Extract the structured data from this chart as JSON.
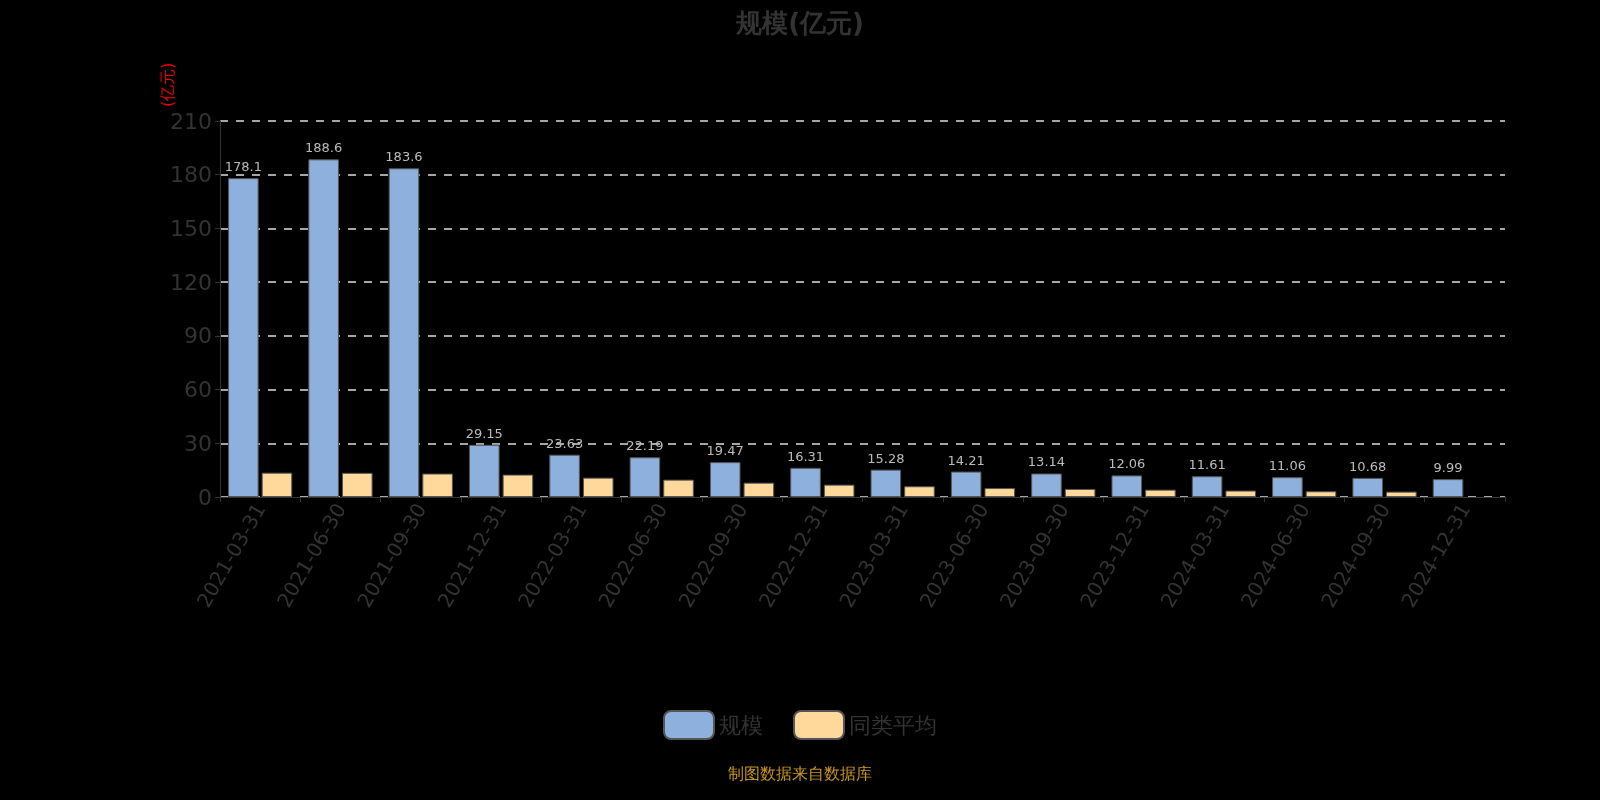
{
  "chart_data": {
    "type": "bar",
    "title": "规模(亿元)",
    "ylabel": "(亿元)",
    "categories": [
      "2021-03-31",
      "2021-06-30",
      "2021-09-30",
      "2021-12-31",
      "2022-03-31",
      "2022-06-30",
      "2022-09-30",
      "2022-12-31",
      "2023-03-31",
      "2023-06-30",
      "2023-09-30",
      "2023-12-31",
      "2024-03-31",
      "2024-06-30",
      "2024-09-30",
      "2024-12-31"
    ],
    "series": [
      {
        "name": "规模",
        "color": "#8eb0dc",
        "values": [
          178.1,
          188.6,
          183.6,
          29.15,
          23.63,
          22.19,
          19.47,
          16.31,
          15.28,
          14.21,
          13.14,
          12.06,
          11.61,
          11.06,
          10.68,
          9.99
        ],
        "data_labels": true
      },
      {
        "name": "同类平均",
        "color": "#ffd99b",
        "values": [
          13.6,
          13.5,
          13.1,
          12.5,
          10.8,
          9.7,
          8.0,
          6.9,
          6.0,
          5.0,
          4.5,
          4.1,
          3.6,
          3.2,
          3.0,
          null
        ]
      }
    ],
    "ylim": [
      0,
      210
    ],
    "yticks": [
      0,
      30,
      60,
      90,
      120,
      150,
      180,
      210
    ],
    "grid": "y",
    "legend": "bottom",
    "annotations": [
      "制图数据来自数据库"
    ]
  }
}
